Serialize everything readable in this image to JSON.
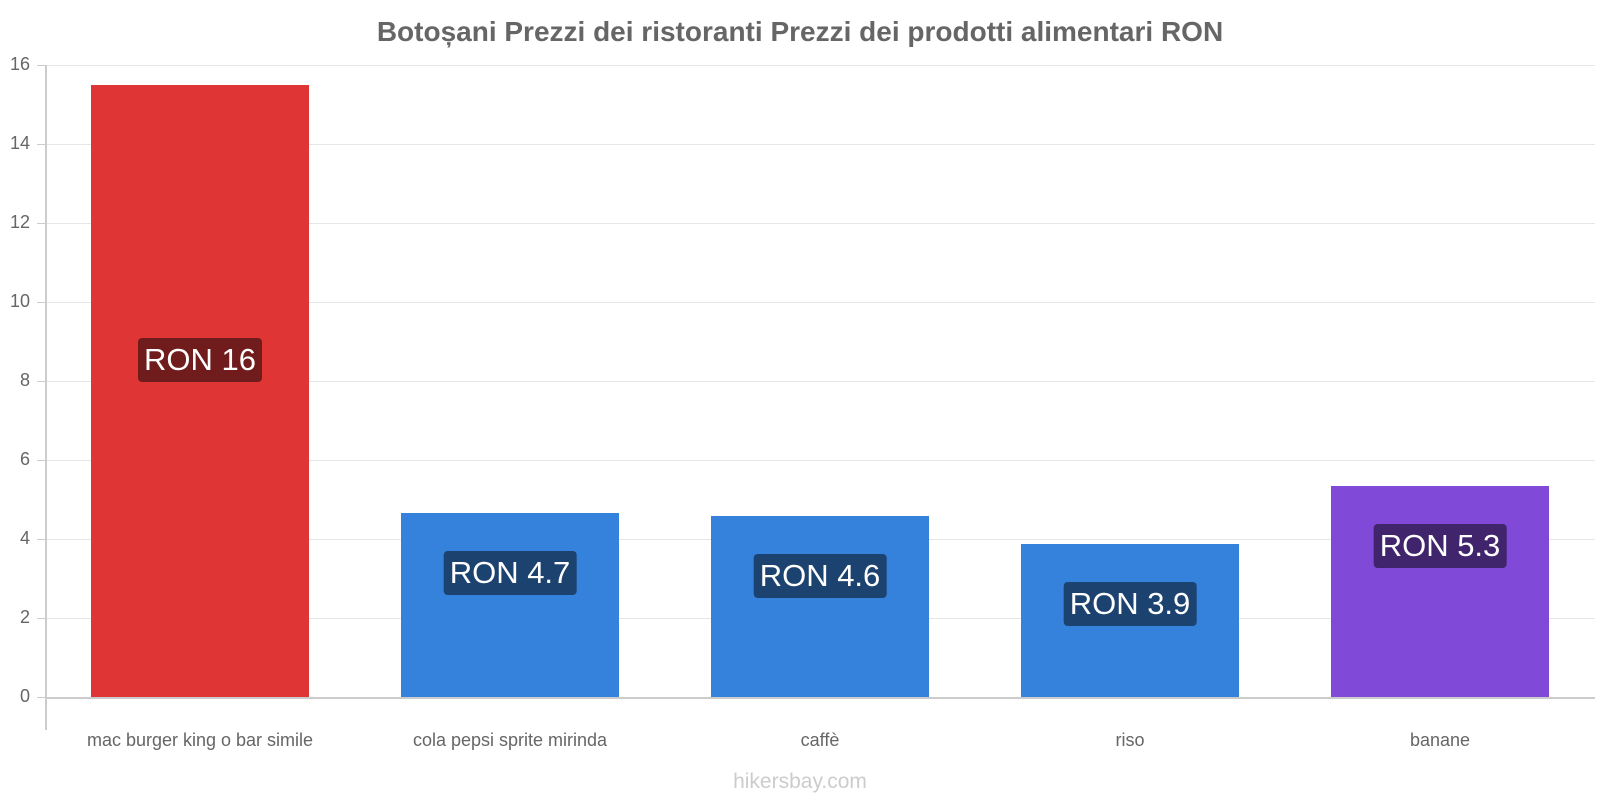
{
  "chart_data": {
    "type": "bar",
    "title": "Botoșani Prezzi dei ristoranti Prezzi dei prodotti alimentari RON",
    "xlabel": "",
    "ylabel": "",
    "ylim": [
      0,
      16
    ],
    "yticks": [
      "0",
      "2",
      "4",
      "6",
      "8",
      "10",
      "12",
      "14",
      "16"
    ],
    "grid": true,
    "categories": [
      "mac burger king o bar simile",
      "cola pepsi sprite mirinda",
      "caffè",
      "riso",
      "banane"
    ],
    "values": [
      15.5,
      4.65,
      4.58,
      3.87,
      5.33
    ],
    "data_labels": [
      "RON 16",
      "RON 4.7",
      "RON 4.6",
      "RON 3.9",
      "RON 5.3"
    ],
    "bar_colors": [
      "#e03535",
      "#3582dd",
      "#3582dd",
      "#3582dd",
      "#8049d8"
    ],
    "label_colors": [
      "#701c1c",
      "#1c4270",
      "#1c4270",
      "#1c4270",
      "#40246c"
    ]
  },
  "watermark": "hikersbay.com"
}
